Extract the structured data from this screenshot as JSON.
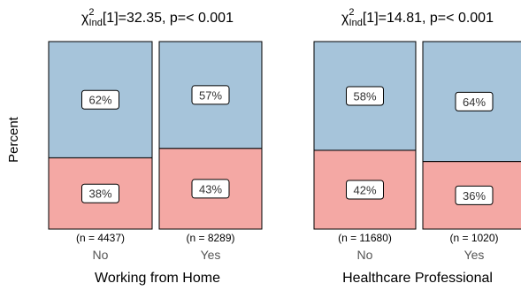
{
  "y_label": "Percent",
  "colors": {
    "top": "#a6c4da",
    "bottom": "#f4a8a4",
    "stroke": "#000000",
    "label_box": "#ffffff"
  },
  "chart_data": [
    {
      "type": "bar",
      "stacked": true,
      "title_prefix": "χ",
      "title_sup": "2",
      "title_sub": "Ind",
      "title_rest": "[1]=32.35, p=< 0.001",
      "xlabel": "Working from Home",
      "categories": [
        "No",
        "Yes"
      ],
      "n_labels": [
        "(n = 4437)",
        "(n = 8289)"
      ],
      "series": [
        {
          "values": [
            62,
            57
          ],
          "labels": [
            "62%",
            "57%"
          ]
        },
        {
          "values": [
            38,
            43
          ],
          "labels": [
            "38%",
            "43%"
          ]
        }
      ],
      "ylim": [
        0,
        100
      ]
    },
    {
      "type": "bar",
      "stacked": true,
      "title_prefix": "χ",
      "title_sup": "2",
      "title_sub": "Ind",
      "title_rest": "[1]=14.81, p=< 0.001",
      "xlabel": "Healthcare Professional",
      "categories": [
        "No",
        "Yes"
      ],
      "n_labels": [
        "(n = 11680)",
        "(n = 1020)"
      ],
      "series": [
        {
          "values": [
            58,
            64
          ],
          "labels": [
            "58%",
            "64%"
          ]
        },
        {
          "values": [
            42,
            36
          ],
          "labels": [
            "42%",
            "36%"
          ]
        }
      ],
      "ylim": [
        0,
        100
      ]
    }
  ]
}
